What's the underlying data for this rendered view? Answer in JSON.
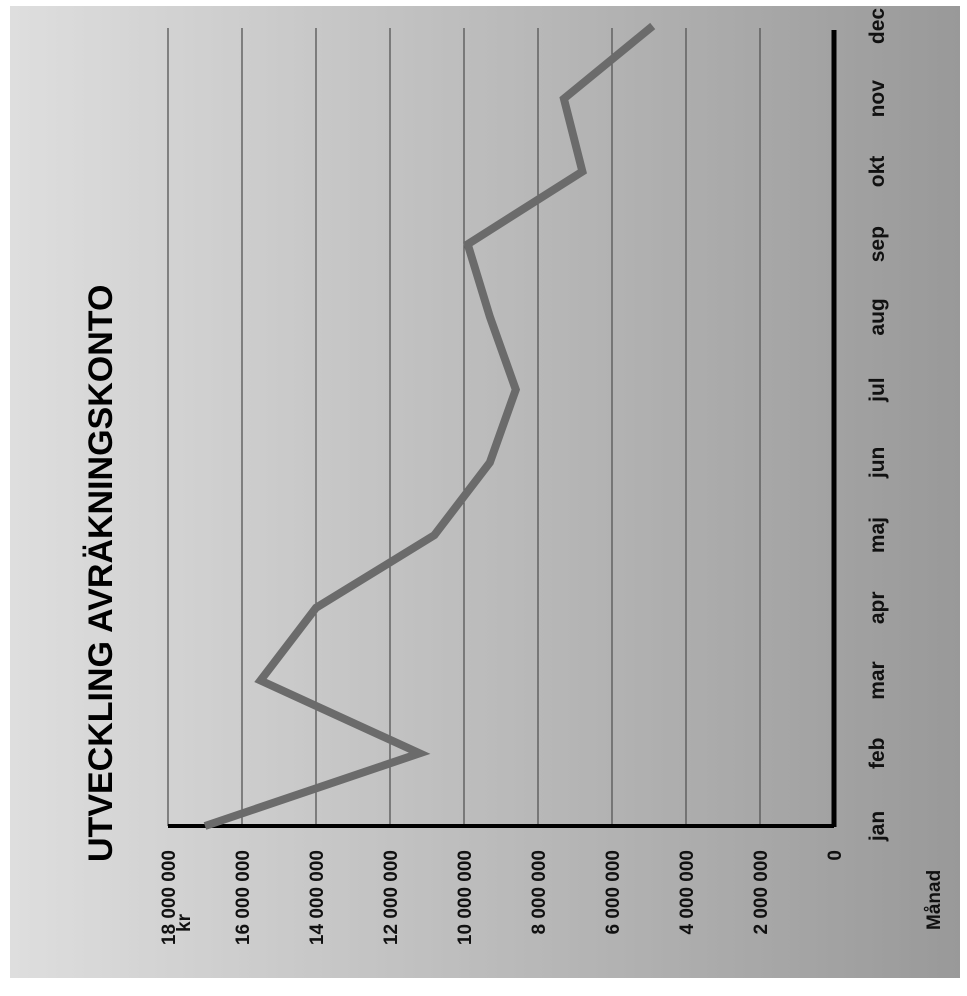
{
  "chart_data": {
    "type": "line",
    "title": "UTVECKLING AVRÄKNINGSKONTO",
    "xlabel": "Månad",
    "ylabel": "kr",
    "categories": [
      "jan",
      "feb",
      "mar",
      "apr",
      "maj",
      "jun",
      "jul",
      "aug",
      "sep",
      "okt",
      "nov",
      "dec"
    ],
    "series": [
      {
        "values": [
          17000000,
          11200000,
          15500000,
          14000000,
          10800000,
          9300000,
          8600000,
          9300000,
          9900000,
          6800000,
          7300000,
          4900000
        ]
      }
    ],
    "y_ticks": [
      {
        "value": 0,
        "label": "0"
      },
      {
        "value": 2000000,
        "label": "2 000 000"
      },
      {
        "value": 4000000,
        "label": "4 000 000"
      },
      {
        "value": 6000000,
        "label": "6 000 000"
      },
      {
        "value": 8000000,
        "label": "8 000 000"
      },
      {
        "value": 10000000,
        "label": "10 000 000"
      },
      {
        "value": 12000000,
        "label": "12 000 000"
      },
      {
        "value": 14000000,
        "label": "14 000 000"
      },
      {
        "value": 16000000,
        "label": "16 000 000"
      },
      {
        "value": 18000000,
        "label": "18 000 000"
      }
    ],
    "ylim": [
      0,
      18000000
    ],
    "grid": true,
    "orientation": "rotated 90° clockwise",
    "colors": {
      "line": "#6b6b6b",
      "background_light": "#dcdcdc",
      "background_dark": "#9a9a9a",
      "axis": "#000000"
    }
  }
}
